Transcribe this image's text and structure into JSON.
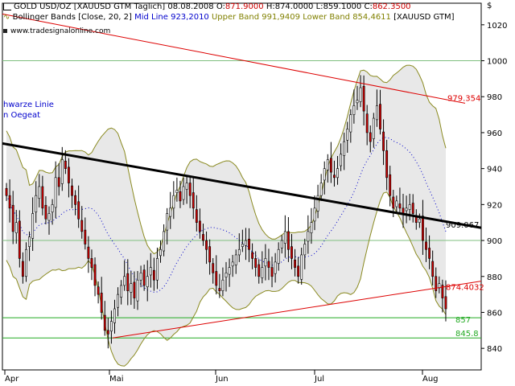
{
  "header": {
    "line1": {
      "instrument": "GOLD USD/OZ [XAUUSD GTM  Täglich]",
      "date": "08.08.2008",
      "o_label": "O:",
      "o_value": "871.9000",
      "h_label": "H:",
      "h_value": "874.0000",
      "l_label": "L:",
      "l_value": "859.1000",
      "c_label": "C:",
      "c_value": "862.3500"
    },
    "line2": {
      "indicator": "Bollinger Bands [Close, 20, 2]",
      "mid": "Mid Line 923,2010",
      "upper": "Upper Band 991,9409",
      "lower": "Lower Band 854,4611",
      "symbol": "[XAUUSD GTM]"
    },
    "source": "www.tradesignalonline.com",
    "currency_symbol": "$"
  },
  "annotations": {
    "line_label_1": "hwarze Linie",
    "line_label_2": "n Oegeat"
  },
  "colors": {
    "candle_up": "#ffffff",
    "candle_down": "#cc0000",
    "candle_outline": "#000000",
    "band": "#8a8a20",
    "band_fill": "#e8e8e8",
    "mid_line": "#0000cc",
    "trend_black": "#000000",
    "trend_red": "#dd0000",
    "support_green": "#22aa22"
  },
  "chart_data": {
    "type": "candlestick",
    "yrange": [
      828,
      1032
    ],
    "yticks": [
      840,
      860,
      880,
      900,
      920,
      940,
      960,
      980,
      1000,
      1020
    ],
    "xticks": [
      "Apr",
      "Mai",
      "Jun",
      "Jul",
      "Aug"
    ],
    "levels": [
      {
        "label": "979.354",
        "value": 979.354,
        "color": "#dd0000"
      },
      {
        "label": "909.067",
        "value": 909.067,
        "color": "#000000"
      },
      {
        "label": "874.4032",
        "value": 874.4032,
        "color": "#dd0000"
      },
      {
        "label": "857",
        "value": 857,
        "color": "#22aa22"
      },
      {
        "label": "845.8",
        "value": 845.8,
        "color": "#22aa22"
      }
    ],
    "closes": [
      925,
      918,
      905,
      910,
      890,
      880,
      895,
      902,
      915,
      925,
      930,
      918,
      912,
      915,
      920,
      935,
      930,
      945,
      940,
      932,
      925,
      920,
      912,
      905,
      898,
      890,
      885,
      875,
      870,
      860,
      850,
      848,
      855,
      862,
      870,
      875,
      880,
      872,
      876,
      868,
      878,
      882,
      875,
      880,
      885,
      878,
      890,
      895,
      905,
      915,
      918,
      925,
      928,
      922,
      930,
      932,
      925,
      918,
      910,
      905,
      900,
      895,
      888,
      882,
      875,
      872,
      878,
      882,
      885,
      888,
      892,
      895,
      898,
      900,
      895,
      890,
      885,
      880,
      885,
      890,
      885,
      880,
      888,
      895,
      900,
      905,
      895,
      890,
      885,
      880,
      892,
      898,
      905,
      910,
      918,
      925,
      932,
      940,
      945,
      938,
      935,
      940,
      948,
      955,
      962,
      970,
      975,
      978,
      985,
      972,
      960,
      955,
      968,
      975,
      962,
      950,
      935,
      925,
      918,
      922,
      918,
      915,
      918,
      920,
      915,
      910,
      912,
      900,
      895,
      890,
      880,
      872,
      876,
      868,
      862
    ]
  }
}
